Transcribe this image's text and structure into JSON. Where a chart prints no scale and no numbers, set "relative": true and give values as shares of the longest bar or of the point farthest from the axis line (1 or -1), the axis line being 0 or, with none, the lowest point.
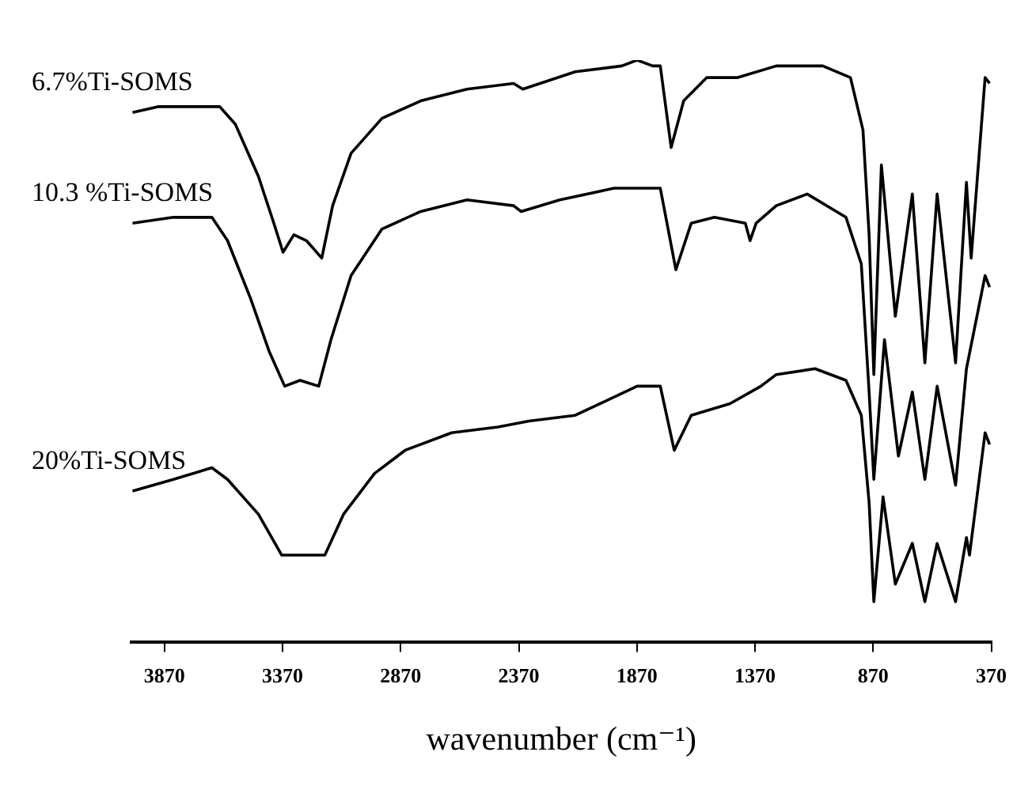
{
  "chart_data": {
    "type": "line",
    "xlabel": "wavenumber (cm⁻¹)",
    "relative": true,
    "xlim": [
      4010,
      370
    ],
    "xticks": [
      3870,
      3370,
      2870,
      2370,
      1870,
      1370,
      870,
      370
    ],
    "grid": false,
    "legend": false,
    "marker": "none",
    "line_style": "solid",
    "series": [
      {
        "name": "6.7%Ti-SOMS",
        "color": "#000000",
        "x": [
          4005,
          3898,
          3636,
          3570,
          3472,
          3407,
          3368,
          3322,
          3269,
          3204,
          3158,
          3080,
          2949,
          2785,
          2589,
          2392,
          2353,
          2131,
          1934,
          1869,
          1803,
          1771,
          1725,
          1672,
          1574,
          1443,
          1280,
          1083,
          966,
          913,
          887,
          867,
          835,
          776,
          704,
          651,
          599,
          521,
          475,
          455,
          396,
          377
        ],
        "values": [
          0.91,
          0.92,
          0.92,
          0.89,
          0.8,
          0.72,
          0.67,
          0.7,
          0.69,
          0.66,
          0.75,
          0.84,
          0.9,
          0.93,
          0.95,
          0.96,
          0.95,
          0.98,
          0.99,
          1.0,
          0.99,
          0.99,
          0.85,
          0.93,
          0.97,
          0.97,
          0.99,
          0.99,
          0.97,
          0.88,
          0.7,
          0.46,
          0.82,
          0.56,
          0.77,
          0.48,
          0.77,
          0.48,
          0.79,
          0.66,
          0.97,
          0.96
        ]
      },
      {
        "name": "10.3 %Ti-SOMS",
        "color": "#000000",
        "x": [
          4005,
          3832,
          3669,
          3603,
          3505,
          3427,
          3361,
          3296,
          3217,
          3165,
          3080,
          2949,
          2785,
          2589,
          2392,
          2360,
          2196,
          1967,
          1771,
          1705,
          1640,
          1542,
          1411,
          1391,
          1365,
          1280,
          1149,
          985,
          920,
          887,
          867,
          822,
          763,
          704,
          651,
          599,
          521,
          475,
          396,
          377
        ],
        "values": [
          0.72,
          0.73,
          0.73,
          0.69,
          0.59,
          0.5,
          0.44,
          0.45,
          0.44,
          0.52,
          0.63,
          0.71,
          0.74,
          0.76,
          0.75,
          0.74,
          0.76,
          0.78,
          0.78,
          0.64,
          0.72,
          0.73,
          0.72,
          0.69,
          0.72,
          0.75,
          0.77,
          0.73,
          0.65,
          0.43,
          0.28,
          0.52,
          0.32,
          0.43,
          0.28,
          0.44,
          0.27,
          0.47,
          0.63,
          0.61
        ]
      },
      {
        "name": "20%Ti-SOMS",
        "color": "#000000",
        "x": [
          4005,
          3832,
          3669,
          3603,
          3472,
          3374,
          3309,
          3191,
          3112,
          2981,
          2851,
          2654,
          2458,
          2327,
          2131,
          1869,
          1771,
          1712,
          1640,
          1476,
          1345,
          1280,
          1116,
          985,
          920,
          887,
          867,
          828,
          776,
          704,
          651,
          599,
          521,
          475,
          462,
          396,
          377
        ],
        "values": [
          0.26,
          0.28,
          0.3,
          0.28,
          0.22,
          0.15,
          0.15,
          0.15,
          0.22,
          0.29,
          0.33,
          0.36,
          0.37,
          0.38,
          0.39,
          0.44,
          0.44,
          0.33,
          0.39,
          0.41,
          0.44,
          0.46,
          0.47,
          0.45,
          0.39,
          0.24,
          0.07,
          0.25,
          0.1,
          0.17,
          0.07,
          0.17,
          0.07,
          0.18,
          0.15,
          0.36,
          0.34
        ]
      }
    ]
  }
}
